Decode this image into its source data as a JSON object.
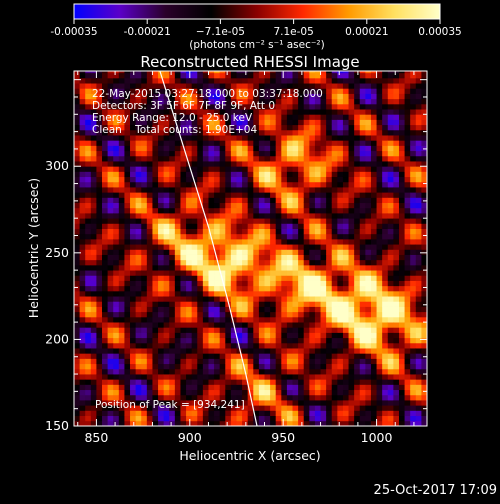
{
  "colorbar": {
    "ticks": [
      "-0.00035",
      "-0.00021",
      "−7.1e-05",
      "7.1e-05",
      "0.00021",
      "0.00035"
    ],
    "unit_label": "(photons cm⁻² s⁻¹ asec⁻²)",
    "colors": [
      "#0000ff",
      "#5b00c8",
      "#2a002a",
      "#000000",
      "#8a0000",
      "#ff2800",
      "#ff9a00",
      "#ffe060",
      "#ffffc8"
    ]
  },
  "annotations": {
    "time_range": "22-May-2015 03:27:18.000 to 03:37:18.000",
    "detectors": "Detectors: 3F 5F 6F 7F 8F 9F, Att 0",
    "energy": "Energy Range: 12.0 - 25.0 keV",
    "clean": "Clean    Total counts: 1.90E+04",
    "peak": "Position of Peak = [934,241]"
  },
  "footer_timestamp": "25-Oct-2017 17:09",
  "chart_data": {
    "type": "heatmap",
    "title": "Reconstructed RHESSI Image",
    "xlabel": "Heliocentric X (arcsec)",
    "ylabel": "Heliocentric Y (arcsec)",
    "xlim": [
      838,
      1027
    ],
    "ylim": [
      150,
      355
    ],
    "xticks": [
      850,
      900,
      950,
      1000
    ],
    "yticks": [
      150,
      200,
      250,
      300
    ],
    "zlim": [
      -0.00035,
      0.00035
    ],
    "peak": {
      "x": 934,
      "y": 241
    },
    "sources": [
      {
        "x": 920,
        "y": 243,
        "amplitude": 0.00033
      },
      {
        "x": 895,
        "y": 258,
        "amplitude": 0.00018
      },
      {
        "x": 955,
        "y": 232,
        "amplitude": 0.00022
      },
      {
        "x": 995,
        "y": 215,
        "amplitude": 0.00028
      },
      {
        "x": 975,
        "y": 226,
        "amplitude": 0.00016
      },
      {
        "x": 1010,
        "y": 205,
        "amplitude": 0.00015
      },
      {
        "x": 955,
        "y": 300,
        "amplitude": 0.00024
      },
      {
        "x": 935,
        "y": 168,
        "amplitude": 0.00014
      }
    ],
    "limb_arc": {
      "x": [
        884,
        897,
        910,
        921,
        930,
        936
      ],
      "y": [
        355,
        310,
        265,
        220,
        180,
        150
      ]
    }
  }
}
